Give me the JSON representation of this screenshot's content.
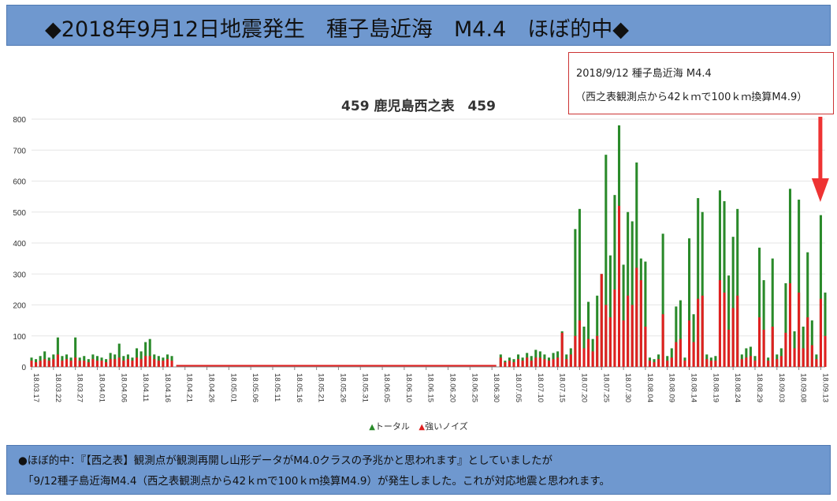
{
  "header": {
    "title": "◆2018年9月12日地震発生　種子島近海　M4.4　ほぼ的中◆"
  },
  "callout": {
    "line1": "2018/9/12 種子島近海 M4.4",
    "line2": "（西之表観測点から42ｋｍで100ｋｍ換算M4.9）"
  },
  "footer": {
    "line1": "●ほぼ的中：『【西之表】観測点が観測再開し山形データがM4.0クラスの予兆かと思われます』としていましたが",
    "line2": "「9/12種子島近海M4.4（西之表観測点から42ｋｍで100ｋｍ換算M4.9）が発生しました。これが対応地震と思われます。"
  },
  "colors": {
    "banner": "#6f98cf",
    "total": "#2a8a2a",
    "noise": "#e02020",
    "arrow": "#ee3333"
  },
  "chart_data": {
    "type": "bar",
    "title": "459 鹿児島西之表　459",
    "xlabel": "",
    "ylabel": "",
    "ylim": [
      0,
      800
    ],
    "yticks": [
      0,
      100,
      200,
      300,
      400,
      500,
      600,
      700,
      800
    ],
    "grid": true,
    "legend_position": "bottom",
    "x_start": "2018-03-17",
    "x_end": "2018-09-14",
    "xtick_labels": [
      "18.03.17",
      "18.03.22",
      "18.03.27",
      "18.04.01",
      "18.04.06",
      "18.04.11",
      "18.04.16",
      "18.04.21",
      "18.04.26",
      "18.05.01",
      "18.05.06",
      "18.05.11",
      "18.05.16",
      "18.05.21",
      "18.05.26",
      "18.05.31",
      "18.06.05",
      "18.06.10",
      "18.06.15",
      "18.06.20",
      "18.06.25",
      "18.06.30",
      "18.07.05",
      "18.07.10",
      "18.07.15",
      "18.07.20",
      "18.07.25",
      "18.07.30",
      "18.08.04",
      "18.08.09",
      "18.08.14",
      "18.08.19",
      "18.08.24",
      "18.08.29",
      "18.09.03",
      "18.09.08",
      "18.09.13"
    ],
    "series": [
      {
        "name": "トータル",
        "color": "#2a8a2a",
        "points": [
          [
            "2018-03-17",
            30
          ],
          [
            "2018-03-18",
            25
          ],
          [
            "2018-03-19",
            35
          ],
          [
            "2018-03-20",
            50
          ],
          [
            "2018-03-21",
            30
          ],
          [
            "2018-03-22",
            40
          ],
          [
            "2018-03-23",
            95
          ],
          [
            "2018-03-24",
            35
          ],
          [
            "2018-03-25",
            40
          ],
          [
            "2018-03-26",
            30
          ],
          [
            "2018-03-27",
            95
          ],
          [
            "2018-03-28",
            30
          ],
          [
            "2018-03-29",
            35
          ],
          [
            "2018-03-30",
            25
          ],
          [
            "2018-03-31",
            40
          ],
          [
            "2018-04-01",
            35
          ],
          [
            "2018-04-02",
            30
          ],
          [
            "2018-04-03",
            25
          ],
          [
            "2018-04-04",
            45
          ],
          [
            "2018-04-05",
            40
          ],
          [
            "2018-04-06",
            75
          ],
          [
            "2018-04-07",
            35
          ],
          [
            "2018-04-08",
            40
          ],
          [
            "2018-04-09",
            30
          ],
          [
            "2018-04-10",
            60
          ],
          [
            "2018-04-11",
            50
          ],
          [
            "2018-04-12",
            80
          ],
          [
            "2018-04-13",
            90
          ],
          [
            "2018-04-14",
            40
          ],
          [
            "2018-04-15",
            35
          ],
          [
            "2018-04-16",
            30
          ],
          [
            "2018-04-17",
            40
          ],
          [
            "2018-04-18",
            35
          ],
          [
            "2018-07-02",
            40
          ],
          [
            "2018-07-03",
            20
          ],
          [
            "2018-07-04",
            30
          ],
          [
            "2018-07-05",
            25
          ],
          [
            "2018-07-06",
            40
          ],
          [
            "2018-07-07",
            30
          ],
          [
            "2018-07-08",
            45
          ],
          [
            "2018-07-09",
            35
          ],
          [
            "2018-07-10",
            55
          ],
          [
            "2018-07-11",
            50
          ],
          [
            "2018-07-12",
            40
          ],
          [
            "2018-07-13",
            30
          ],
          [
            "2018-07-14",
            45
          ],
          [
            "2018-07-15",
            50
          ],
          [
            "2018-07-16",
            115
          ],
          [
            "2018-07-17",
            40
          ],
          [
            "2018-07-18",
            60
          ],
          [
            "2018-07-19",
            445
          ],
          [
            "2018-07-20",
            510
          ],
          [
            "2018-07-21",
            130
          ],
          [
            "2018-07-22",
            210
          ],
          [
            "2018-07-23",
            90
          ],
          [
            "2018-07-24",
            230
          ],
          [
            "2018-07-25",
            300
          ],
          [
            "2018-07-26",
            685
          ],
          [
            "2018-07-27",
            360
          ],
          [
            "2018-07-28",
            555
          ],
          [
            "2018-07-29",
            780
          ],
          [
            "2018-07-30",
            330
          ],
          [
            "2018-07-31",
            500
          ],
          [
            "2018-08-01",
            470
          ],
          [
            "2018-08-02",
            660
          ],
          [
            "2018-08-03",
            350
          ],
          [
            "2018-08-04",
            340
          ],
          [
            "2018-08-05",
            30
          ],
          [
            "2018-08-06",
            25
          ],
          [
            "2018-08-07",
            40
          ],
          [
            "2018-08-08",
            430
          ],
          [
            "2018-08-09",
            35
          ],
          [
            "2018-08-10",
            60
          ],
          [
            "2018-08-11",
            195
          ],
          [
            "2018-08-12",
            215
          ],
          [
            "2018-08-13",
            30
          ],
          [
            "2018-08-14",
            415
          ],
          [
            "2018-08-15",
            170
          ],
          [
            "2018-08-16",
            545
          ],
          [
            "2018-08-17",
            500
          ],
          [
            "2018-08-18",
            40
          ],
          [
            "2018-08-19",
            30
          ],
          [
            "2018-08-20",
            35
          ],
          [
            "2018-08-21",
            570
          ],
          [
            "2018-08-22",
            535
          ],
          [
            "2018-08-23",
            295
          ],
          [
            "2018-08-24",
            420
          ],
          [
            "2018-08-25",
            510
          ],
          [
            "2018-08-26",
            40
          ],
          [
            "2018-08-27",
            60
          ],
          [
            "2018-08-28",
            65
          ],
          [
            "2018-08-29",
            35
          ],
          [
            "2018-08-30",
            385
          ],
          [
            "2018-08-31",
            280
          ],
          [
            "2018-09-01",
            30
          ],
          [
            "2018-09-02",
            350
          ],
          [
            "2018-09-03",
            40
          ],
          [
            "2018-09-04",
            60
          ],
          [
            "2018-09-05",
            270
          ],
          [
            "2018-09-06",
            575
          ],
          [
            "2018-09-07",
            115
          ],
          [
            "2018-09-08",
            540
          ],
          [
            "2018-09-09",
            130
          ],
          [
            "2018-09-10",
            370
          ],
          [
            "2018-09-11",
            150
          ],
          [
            "2018-09-12",
            40
          ],
          [
            "2018-09-13",
            490
          ],
          [
            "2018-09-14",
            240
          ]
        ]
      },
      {
        "name": "強いノイズ",
        "color": "#e02020",
        "points": [
          [
            "2018-03-17",
            20
          ],
          [
            "2018-03-18",
            15
          ],
          [
            "2018-03-19",
            20
          ],
          [
            "2018-03-20",
            25
          ],
          [
            "2018-03-21",
            20
          ],
          [
            "2018-03-22",
            25
          ],
          [
            "2018-03-23",
            40
          ],
          [
            "2018-03-24",
            20
          ],
          [
            "2018-03-25",
            25
          ],
          [
            "2018-03-26",
            20
          ],
          [
            "2018-03-27",
            30
          ],
          [
            "2018-03-28",
            20
          ],
          [
            "2018-03-29",
            20
          ],
          [
            "2018-03-30",
            15
          ],
          [
            "2018-03-31",
            25
          ],
          [
            "2018-04-01",
            20
          ],
          [
            "2018-04-02",
            20
          ],
          [
            "2018-04-03",
            15
          ],
          [
            "2018-04-04",
            25
          ],
          [
            "2018-04-05",
            25
          ],
          [
            "2018-04-06",
            30
          ],
          [
            "2018-04-07",
            20
          ],
          [
            "2018-04-08",
            25
          ],
          [
            "2018-04-09",
            20
          ],
          [
            "2018-04-10",
            30
          ],
          [
            "2018-04-11",
            25
          ],
          [
            "2018-04-12",
            35
          ],
          [
            "2018-04-13",
            35
          ],
          [
            "2018-04-14",
            25
          ],
          [
            "2018-04-15",
            20
          ],
          [
            "2018-04-16",
            20
          ],
          [
            "2018-04-17",
            25
          ],
          [
            "2018-04-18",
            20
          ],
          [
            "2018-07-02",
            30
          ],
          [
            "2018-07-03",
            15
          ],
          [
            "2018-07-04",
            20
          ],
          [
            "2018-07-05",
            15
          ],
          [
            "2018-07-06",
            25
          ],
          [
            "2018-07-07",
            20
          ],
          [
            "2018-07-08",
            30
          ],
          [
            "2018-07-09",
            20
          ],
          [
            "2018-07-10",
            30
          ],
          [
            "2018-07-11",
            30
          ],
          [
            "2018-07-12",
            25
          ],
          [
            "2018-07-13",
            20
          ],
          [
            "2018-07-14",
            25
          ],
          [
            "2018-07-15",
            30
          ],
          [
            "2018-07-16",
            110
          ],
          [
            "2018-07-17",
            25
          ],
          [
            "2018-07-18",
            40
          ],
          [
            "2018-07-19",
            100
          ],
          [
            "2018-07-20",
            150
          ],
          [
            "2018-07-21",
            60
          ],
          [
            "2018-07-22",
            90
          ],
          [
            "2018-07-23",
            50
          ],
          [
            "2018-07-24",
            100
          ],
          [
            "2018-07-25",
            300
          ],
          [
            "2018-07-26",
            200
          ],
          [
            "2018-07-27",
            160
          ],
          [
            "2018-07-28",
            250
          ],
          [
            "2018-07-29",
            520
          ],
          [
            "2018-07-30",
            150
          ],
          [
            "2018-07-31",
            230
          ],
          [
            "2018-08-01",
            200
          ],
          [
            "2018-08-02",
            320
          ],
          [
            "2018-08-03",
            280
          ],
          [
            "2018-08-04",
            130
          ],
          [
            "2018-08-05",
            20
          ],
          [
            "2018-08-06",
            15
          ],
          [
            "2018-08-07",
            25
          ],
          [
            "2018-08-08",
            170
          ],
          [
            "2018-08-09",
            20
          ],
          [
            "2018-08-10",
            30
          ],
          [
            "2018-08-11",
            80
          ],
          [
            "2018-08-12",
            90
          ],
          [
            "2018-08-13",
            20
          ],
          [
            "2018-08-14",
            150
          ],
          [
            "2018-08-15",
            80
          ],
          [
            "2018-08-16",
            220
          ],
          [
            "2018-08-17",
            230
          ],
          [
            "2018-08-18",
            25
          ],
          [
            "2018-08-19",
            20
          ],
          [
            "2018-08-20",
            20
          ],
          [
            "2018-08-21",
            280
          ],
          [
            "2018-08-22",
            240
          ],
          [
            "2018-08-23",
            120
          ],
          [
            "2018-08-24",
            190
          ],
          [
            "2018-08-25",
            230
          ],
          [
            "2018-08-26",
            25
          ],
          [
            "2018-08-27",
            30
          ],
          [
            "2018-08-28",
            35
          ],
          [
            "2018-08-29",
            20
          ],
          [
            "2018-08-30",
            160
          ],
          [
            "2018-08-31",
            120
          ],
          [
            "2018-09-01",
            20
          ],
          [
            "2018-09-02",
            130
          ],
          [
            "2018-09-03",
            25
          ],
          [
            "2018-09-04",
            35
          ],
          [
            "2018-09-05",
            110
          ],
          [
            "2018-09-06",
            270
          ],
          [
            "2018-09-07",
            60
          ],
          [
            "2018-09-08",
            240
          ],
          [
            "2018-09-09",
            60
          ],
          [
            "2018-09-10",
            160
          ],
          [
            "2018-09-11",
            70
          ],
          [
            "2018-09-12",
            25
          ],
          [
            "2018-09-13",
            220
          ],
          [
            "2018-09-14",
            100
          ]
        ]
      }
    ],
    "gap_value": 0
  }
}
